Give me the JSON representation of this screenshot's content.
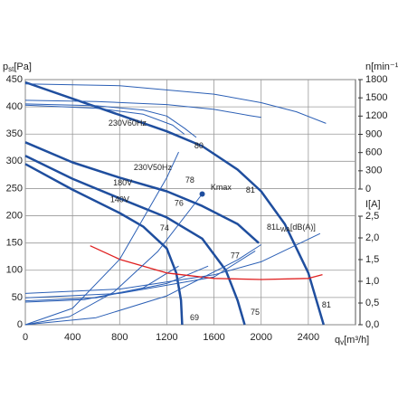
{
  "chart_data": {
    "type": "line",
    "y_label": {
      "main": "p",
      "sub": "st",
      "unit": "[Pa]"
    },
    "y2_label": "n[min⁻¹]",
    "y3_label": "I[A]",
    "x_label": {
      "main": "q",
      "sub": "v",
      "unit": "[m³/h]"
    },
    "xlim": [
      0,
      2800
    ],
    "xticks": [
      0,
      400,
      800,
      1200,
      1600,
      2000,
      2400
    ],
    "ylim": [
      0,
      450
    ],
    "yticks": [
      0,
      50,
      100,
      150,
      200,
      250,
      300,
      350,
      400,
      450
    ],
    "y2lim": [
      0,
      1800
    ],
    "y2ticks": [
      0,
      300,
      600,
      900,
      1200,
      1500,
      1800
    ],
    "y3lim": [
      0,
      2.5
    ],
    "y3ticks": [
      {
        "value": 0,
        "label": "0,0"
      },
      {
        "value": 0.5,
        "label": "0,5"
      },
      {
        "value": 1,
        "label": "1,0"
      },
      {
        "value": 1.5,
        "label": "1,5"
      },
      {
        "value": 2,
        "label": "2,0"
      },
      {
        "value": 2.5,
        "label": "2,5"
      }
    ],
    "grid": true,
    "series": [
      {
        "axis": "y",
        "color": "#1f4e9e",
        "width": 2.5,
        "x": [
          0,
          400,
          800,
          1200,
          1500,
          1800,
          2000,
          2200,
          2400,
          2530
        ],
        "values": [
          445,
          415,
          385,
          355,
          328,
          285,
          245,
          185,
          95,
          0
        ]
      },
      {
        "axis": "y",
        "color": "#1f4e9e",
        "width": 2.5,
        "x": [
          0,
          400,
          800,
          1200,
          1500,
          1800,
          1980
        ],
        "values": [
          335,
          298,
          270,
          245,
          218,
          185,
          150
        ]
      },
      {
        "axis": "y",
        "color": "#1f4e9e",
        "width": 2.5,
        "x": [
          0,
          400,
          800,
          1200,
          1500,
          1700,
          1800,
          1860
        ],
        "values": [
          310,
          268,
          232,
          197,
          158,
          100,
          45,
          0
        ]
      },
      {
        "axis": "y",
        "color": "#1f4e9e",
        "width": 2.5,
        "x": [
          0,
          400,
          800,
          1000,
          1200,
          1280,
          1320,
          1330
        ],
        "values": [
          295,
          248,
          205,
          180,
          140,
          95,
          45,
          0
        ]
      },
      {
        "axis": "y2",
        "color": "#2b5fb5",
        "width": 1,
        "x": [
          0,
          800,
          1600,
          2000,
          2300,
          2550
        ],
        "values": [
          1730,
          1700,
          1560,
          1420,
          1270,
          1080
        ]
      },
      {
        "axis": "y2",
        "color": "#2b5fb5",
        "width": 1,
        "x": [
          0,
          600,
          1200,
          1600,
          1900,
          2000
        ],
        "values": [
          1460,
          1440,
          1390,
          1310,
          1210,
          1180
        ]
      },
      {
        "axis": "y2",
        "color": "#2b5fb5",
        "width": 1,
        "x": [
          0,
          600,
          1000,
          1200,
          1350,
          1450
        ],
        "values": [
          1400,
          1370,
          1300,
          1200,
          1000,
          850
        ]
      },
      {
        "axis": "y2",
        "color": "#2b5fb5",
        "width": 1,
        "x": [
          0,
          600,
          1000,
          1250,
          1350
        ],
        "values": [
          1380,
          1330,
          1230,
          1050,
          900
        ]
      },
      {
        "axis": "y3",
        "color": "#2b5fb5",
        "width": 1,
        "x": [
          0,
          800,
          1600,
          2000,
          2500
        ],
        "values": [
          0.72,
          0.82,
          1.15,
          1.45,
          2.1
        ]
      },
      {
        "axis": "y3",
        "color": "#2b5fb5",
        "width": 1,
        "x": [
          0,
          800,
          1600,
          1950
        ],
        "values": [
          0.62,
          0.72,
          1.1,
          1.7
        ]
      },
      {
        "axis": "y3",
        "color": "#2b5fb5",
        "width": 1,
        "x": [
          0,
          600,
          1200,
          1550
        ],
        "values": [
          0.55,
          0.62,
          0.95,
          1.35
        ]
      },
      {
        "axis": "y3",
        "color": "#2b5fb5",
        "width": 1,
        "x": [
          0,
          500,
          1000,
          1300
        ],
        "values": [
          0.52,
          0.58,
          0.85,
          1.35
        ]
      },
      {
        "axis": "y",
        "color": "#e02020",
        "width": 1.3,
        "x": [
          550,
          800,
          1200,
          1600,
          2000,
          2400,
          2520
        ],
        "values": [
          145,
          120,
          95,
          85,
          83,
          85,
          92
        ]
      },
      {
        "axis": "y",
        "color": "#2b5fb5",
        "width": 1,
        "x": [
          0,
          375,
          750,
          1125,
          1500
        ],
        "values": [
          0,
          15,
          60,
          135,
          240
        ]
      },
      {
        "axis": "y",
        "color": "#2b5fb5",
        "width": 1,
        "x": [
          0,
          600,
          1200,
          1800,
          2000
        ],
        "values": [
          0,
          13,
          53,
          119,
          147
        ]
      },
      {
        "axis": "y",
        "color": "#2b5fb5",
        "width": 1,
        "x": [
          0,
          400,
          800,
          1200,
          1300
        ],
        "values": [
          0,
          30,
          120,
          270,
          317
        ]
      },
      {
        "axis": "y",
        "color": "#1f4e9e",
        "marker": true,
        "x": [
          1500
        ],
        "values": [
          240
        ]
      }
    ],
    "annotations": [
      {
        "text": "230V60Hz",
        "x": 705,
        "y": 369
      },
      {
        "text": "230V50Hz",
        "x": 920,
        "y": 287
      },
      {
        "text": "180V",
        "x": 745,
        "y": 259
      },
      {
        "text": "140V",
        "x": 720,
        "y": 228
      },
      {
        "text": "80",
        "x": 1434,
        "y": 327
      },
      {
        "text": "78",
        "x": 1357,
        "y": 264
      },
      {
        "text": "76",
        "x": 1265,
        "y": 222
      },
      {
        "text": "74",
        "x": 1142,
        "y": 176
      },
      {
        "text": "81",
        "x": 1871,
        "y": 246
      },
      {
        "text": "81",
        "x": 2048,
        "y": 178
      },
      {
        "text": "77",
        "x": 1740,
        "y": 125
      },
      {
        "text": "75",
        "x": 1910,
        "y": 22
      },
      {
        "text": "69",
        "x": 1396,
        "y": 12
      },
      {
        "text": "81",
        "x": 2515,
        "y": 35
      },
      {
        "text": "Kmax",
        "x": 1572,
        "y": 251
      },
      {
        "text": "L",
        "sub": "WA",
        "suffix": "[dB(A)]",
        "x": 2124,
        "y": 178
      }
    ]
  }
}
